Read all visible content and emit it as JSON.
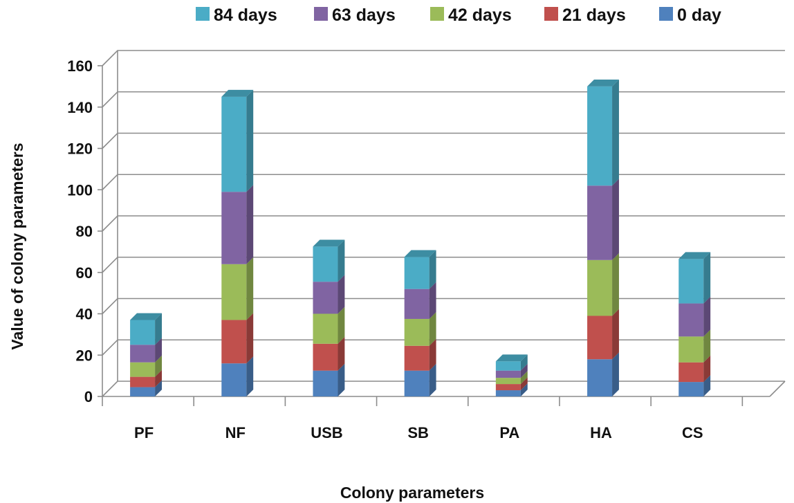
{
  "chart_data": {
    "type": "bar",
    "stacked": true,
    "three_d": true,
    "xlabel": "Colony  parameters",
    "ylabel": "Value of colony parameters",
    "categories": [
      "PF",
      "NF",
      "USB",
      "SB",
      "PA",
      "HA",
      "CS"
    ],
    "ylim": [
      0,
      160
    ],
    "yticks": [
      0,
      20,
      40,
      60,
      80,
      100,
      120,
      140,
      160
    ],
    "grid": true,
    "legend_position": "top",
    "series": [
      {
        "name": "0 day",
        "color": "#4F81BD",
        "values": [
          4.5,
          16,
          12.5,
          12.5,
          3,
          18,
          7
        ]
      },
      {
        "name": "21 days",
        "color": "#C0504D",
        "values": [
          5,
          21,
          13,
          12,
          3,
          21,
          9.5
        ]
      },
      {
        "name": "42 days",
        "color": "#9BBB59",
        "values": [
          7,
          27,
          14.5,
          13,
          3,
          27,
          12.5
        ]
      },
      {
        "name": "63 days",
        "color": "#8064A2",
        "values": [
          8.5,
          35,
          15.5,
          14.5,
          3.5,
          36,
          16
        ]
      },
      {
        "name": "84 days",
        "color": "#4BACC6",
        "values": [
          12,
          46,
          17,
          15.5,
          4.5,
          48,
          21.5
        ]
      }
    ],
    "legend_order": [
      "84 days",
      "63 days",
      "42 days",
      "21 days",
      "0 day"
    ]
  }
}
